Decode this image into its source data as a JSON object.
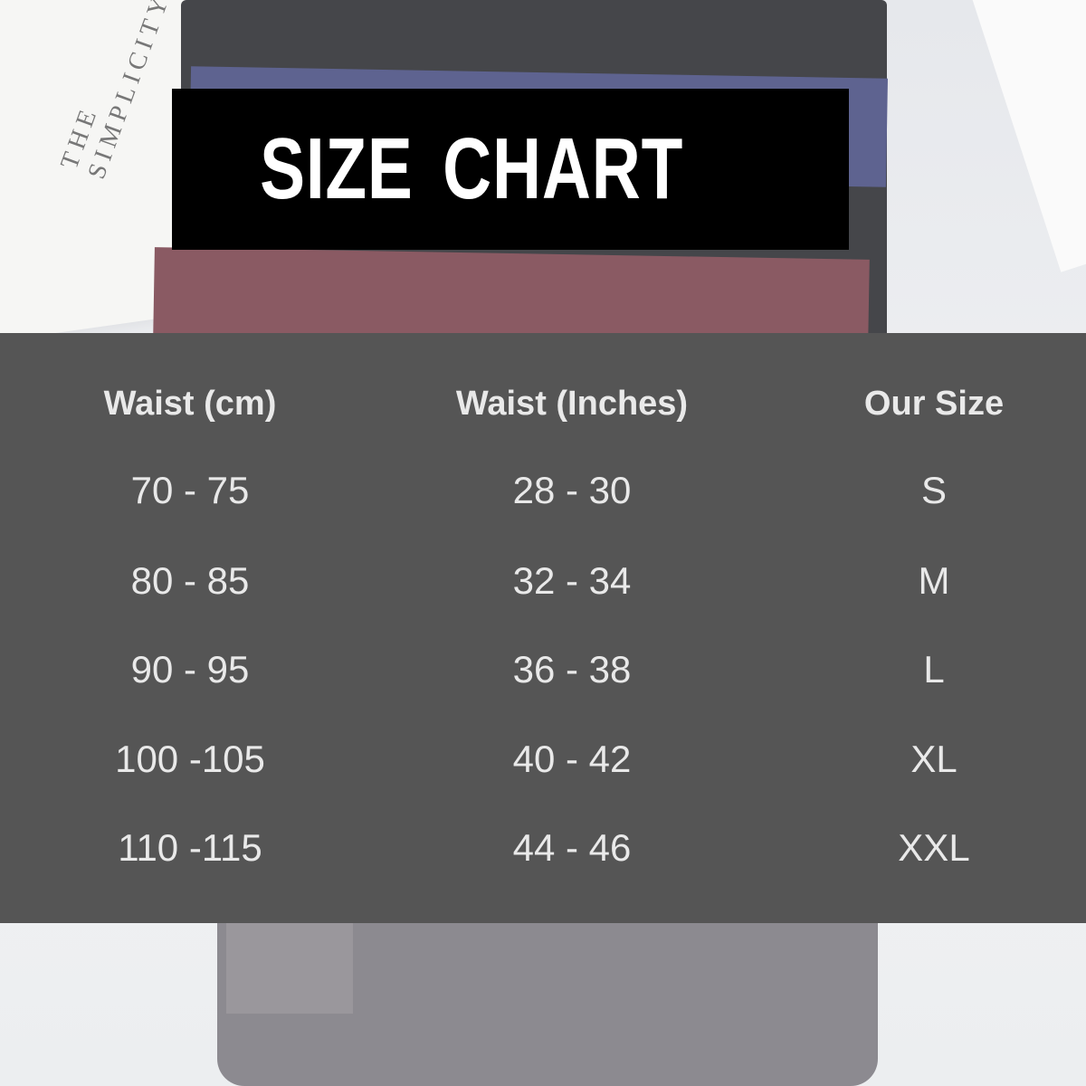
{
  "background_book_text": "THE SIMPLICITY",
  "title": "SIZE CHART",
  "table": {
    "headers": [
      "Waist (cm)",
      "Waist (Inches)",
      "Our Size"
    ],
    "rows": [
      [
        "70 - 75",
        "28 - 30",
        "S"
      ],
      [
        "80 - 85",
        "32 - 34",
        "M"
      ],
      [
        "90 - 95",
        "36 - 38",
        "L"
      ],
      [
        "100 -105",
        "40 - 42",
        "XL"
      ],
      [
        "110 -115",
        "44 - 46",
        "XXL"
      ]
    ]
  },
  "colors": {
    "panel": "#555555",
    "title_bg": "#000000",
    "text": "#e9e9e9"
  }
}
